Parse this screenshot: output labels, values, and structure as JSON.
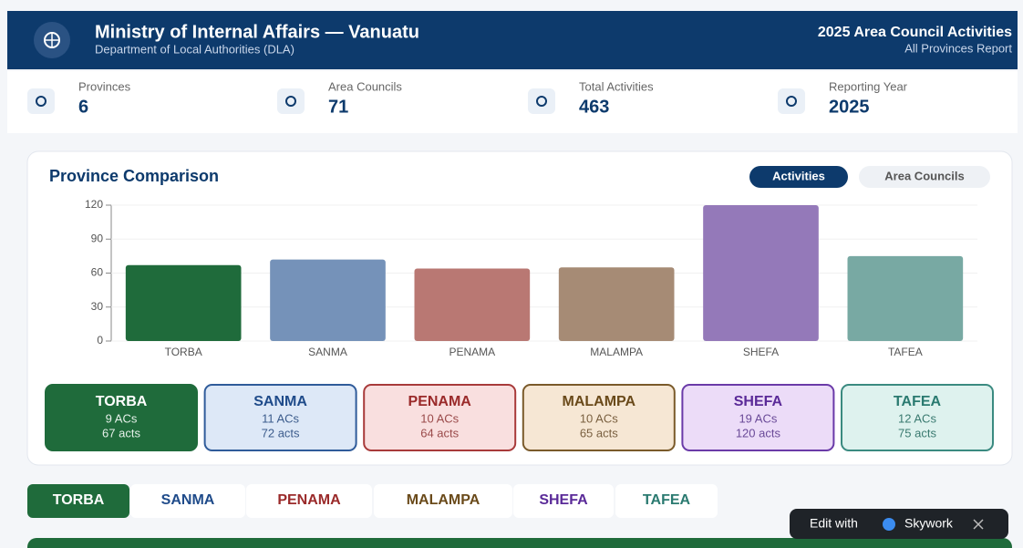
{
  "header": {
    "title": "Ministry of Internal Affairs — Vanuatu",
    "subtitle": "Department of Local Authorities (DLA)",
    "report_title": "2025 Area Council Activities",
    "report_subtitle": "All Provinces Report"
  },
  "stats": [
    {
      "label": "Provinces",
      "value": 6
    },
    {
      "label": "Area Councils",
      "value": 71
    },
    {
      "label": "Total Activities",
      "value": 463
    },
    {
      "label": "Reporting Year",
      "value": 2025
    }
  ],
  "chart": {
    "type": "bar",
    "title": "Province Comparison",
    "toggles": [
      "Activities",
      "Area Councils"
    ],
    "categories": [
      "TORBA",
      "SANMA",
      "PENAMA",
      "MALAMPA",
      "SHEFA",
      "TAFEA"
    ],
    "values": [
      67,
      72,
      64,
      65,
      120,
      75
    ],
    "colors": [
      "#1f6b3b",
      "#7592b9",
      "#b97873",
      "#a68b75",
      "#9479b9",
      "#78a9a3"
    ],
    "ylim": [
      0,
      120
    ],
    "yticks": [
      0,
      30,
      60,
      90,
      120
    ]
  },
  "cards": [
    {
      "name": "TORBA",
      "acs": "9 ACs",
      "acts": "67 acts"
    },
    {
      "name": "SANMA",
      "acs": "11 ACs",
      "acts": "72 acts"
    },
    {
      "name": "PENAMA",
      "acs": "10 ACs",
      "acts": "64 acts"
    },
    {
      "name": "MALAMPA",
      "acs": "10 ACs",
      "acts": "65 acts"
    },
    {
      "name": "SHEFA",
      "acs": "19 ACs",
      "acts": "120 acts"
    },
    {
      "name": "TAFEA",
      "acs": "12 ACs",
      "acts": "75 acts"
    }
  ],
  "tabs": [
    "TORBA",
    "SANMA",
    "PENAMA",
    "MALAMPA",
    "SHEFA",
    "TAFEA"
  ],
  "badge": {
    "text": "Edit with",
    "brand": "Skywork"
  }
}
